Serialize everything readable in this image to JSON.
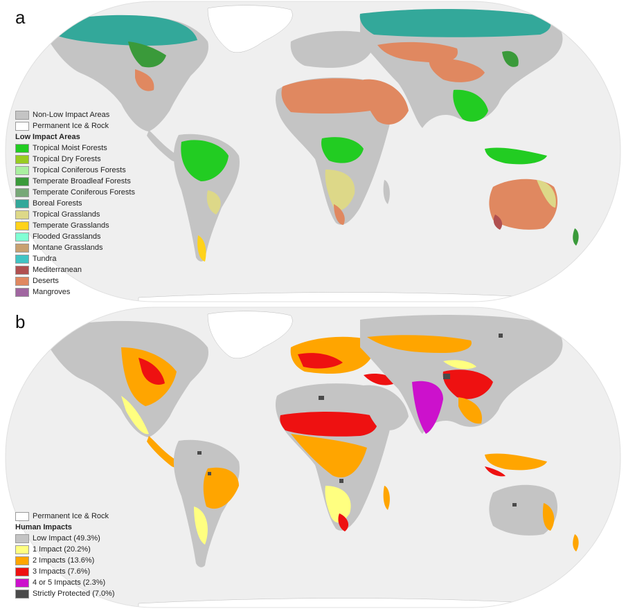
{
  "panel_a": {
    "letter": "a",
    "legend_pre": [
      {
        "label": "Non-Low Impact Areas",
        "color": "#c4c4c4"
      },
      {
        "label": "Permanent Ice & Rock",
        "color": "#ffffff"
      }
    ],
    "legend_heading": "Low Impact Areas",
    "legend": [
      {
        "label": "Tropical Moist Forests",
        "color": "#22cc22"
      },
      {
        "label": "Tropical Dry Forests",
        "color": "#99cc22"
      },
      {
        "label": "Tropical Coniferous Forests",
        "color": "#aaf0a0"
      },
      {
        "label": "Temperate Broadleaf Forests",
        "color": "#3a9a3a"
      },
      {
        "label": "Temperate Coniferous Forests",
        "color": "#77a877"
      },
      {
        "label": "Boreal Forests",
        "color": "#33a89a"
      },
      {
        "label": "Tropical Grasslands",
        "color": "#ddd888"
      },
      {
        "label": "Temperate Grasslands",
        "color": "#ffd21a"
      },
      {
        "label": "Flooded Grasslands",
        "color": "#80ffd4"
      },
      {
        "label": "Montane Grasslands",
        "color": "#c8a070"
      },
      {
        "label": "Tundra",
        "color": "#40c4c4"
      },
      {
        "label": "Mediterranean",
        "color": "#b05050"
      },
      {
        "label": "Deserts",
        "color": "#e08860"
      },
      {
        "label": "Mangroves",
        "color": "#a066a0"
      }
    ]
  },
  "panel_b": {
    "letter": "b",
    "legend_pre": [
      {
        "label": "Permanent Ice & Rock",
        "color": "#ffffff"
      }
    ],
    "legend_heading": "Human Impacts",
    "legend": [
      {
        "label": "Low Impact (49.3%)",
        "color": "#c4c4c4"
      },
      {
        "label": "1 Impact (20.2%)",
        "color": "#ffff80"
      },
      {
        "label": "2 Impacts (13.6%)",
        "color": "#ffa500"
      },
      {
        "label": "3 Impacts (7.6%)",
        "color": "#ee1111"
      },
      {
        "label": "4 or 5 Impacts (2.3%)",
        "color": "#cc11cc"
      },
      {
        "label": "Strictly Protected (7.0%)",
        "color": "#4a4a4a"
      }
    ]
  },
  "map_colors": {
    "ocean": "#efefef",
    "land": "#c4c4c4"
  }
}
